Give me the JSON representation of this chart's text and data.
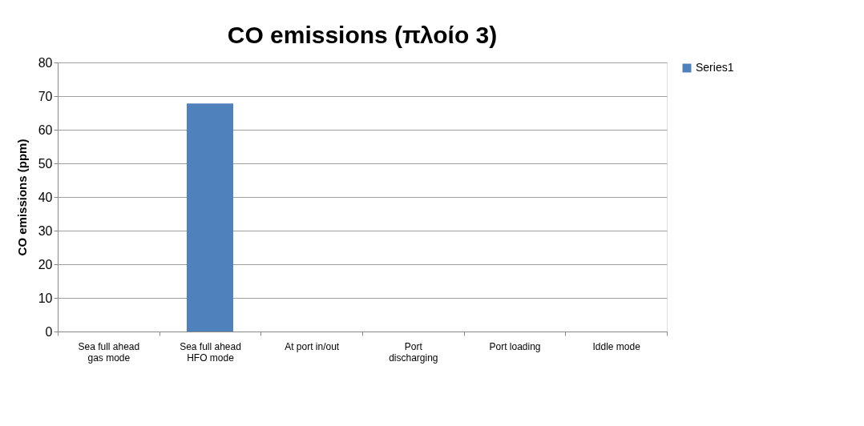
{
  "chart_data": {
    "type": "bar",
    "title": "CO emissions (πλοίο 3)",
    "ylabel": "CO emissions (ppm)",
    "categories": [
      "Sea full ahead gas mode",
      "Sea full ahead HFO mode",
      "At port in/out",
      "Port discharging",
      "Port loading",
      "Iddle mode"
    ],
    "series": [
      {
        "name": "Series1",
        "color": "#4f81bd",
        "values": [
          0,
          67.8,
          0,
          0,
          0,
          0
        ]
      }
    ],
    "ylim": [
      0,
      80
    ],
    "yticks": [
      0,
      10,
      20,
      30,
      40,
      50,
      60,
      70,
      80
    ],
    "grid": "y",
    "legend": "right"
  }
}
